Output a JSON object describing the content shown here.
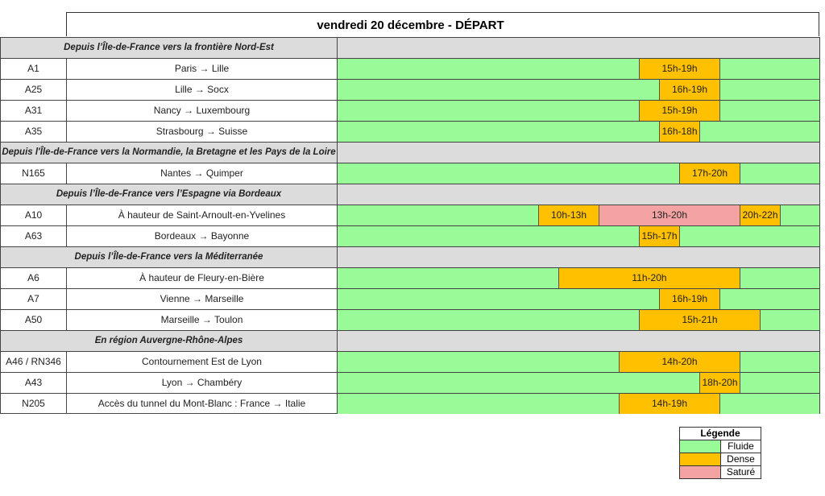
{
  "title": "vendredi 20 décembre  - DÉPART",
  "colors": {
    "fluide": "#98fb98",
    "dense": "#ffc000",
    "sature": "#f4a3a3"
  },
  "sections": [
    {
      "label": "Depuis l’Île-de-France vers la frontière Nord-Est",
      "rows": [
        {
          "road": "A1",
          "desc": "Paris → Lille",
          "periods": [
            {
              "label": "15h-19h",
              "start": 15,
              "end": 19,
              "level": "dense"
            }
          ]
        },
        {
          "road": "A25",
          "desc": "Lille → Socx",
          "periods": [
            {
              "label": "16h-19h",
              "start": 16,
              "end": 19,
              "level": "dense"
            }
          ]
        },
        {
          "road": "A31",
          "desc": "Nancy → Luxembourg",
          "periods": [
            {
              "label": "15h-19h",
              "start": 15,
              "end": 19,
              "level": "dense"
            }
          ]
        },
        {
          "road": "A35",
          "desc": "Strasbourg → Suisse",
          "periods": [
            {
              "label": "16h-18h",
              "start": 16,
              "end": 18,
              "level": "dense"
            }
          ]
        }
      ]
    },
    {
      "label": "Depuis l'Île-de-France vers la Normandie, la Bretagne et les Pays de la Loire",
      "rows": [
        {
          "road": "N165",
          "desc": "Nantes → Quimper",
          "periods": [
            {
              "label": "17h-20h",
              "start": 17,
              "end": 20,
              "level": "dense"
            }
          ]
        }
      ]
    },
    {
      "label": "Depuis l’Île-de-France vers l’Espagne via Bordeaux",
      "rows": [
        {
          "road": "A10",
          "desc": "À hauteur de Saint-Arnoult-en-Yvelines",
          "periods": [
            {
              "label": "10h-13h",
              "start": 10,
              "end": 13,
              "level": "dense"
            },
            {
              "label": "13h-20h",
              "start": 13,
              "end": 20,
              "level": "sature"
            },
            {
              "label": "20h-22h",
              "start": 20,
              "end": 22,
              "level": "dense"
            }
          ]
        },
        {
          "road": "A63",
          "desc": "Bordeaux → Bayonne",
          "periods": [
            {
              "label": "15h-17h",
              "start": 15,
              "end": 17,
              "level": "dense"
            }
          ]
        }
      ]
    },
    {
      "label": "Depuis l’Île-de-France vers la Méditerranée",
      "rows": [
        {
          "road": "A6",
          "desc": "À hauteur de Fleury-en-Bière",
          "periods": [
            {
              "label": "11h-20h",
              "start": 11,
              "end": 20,
              "level": "dense"
            }
          ]
        },
        {
          "road": "A7",
          "desc": "Vienne → Marseille",
          "periods": [
            {
              "label": "16h-19h",
              "start": 16,
              "end": 19,
              "level": "dense"
            }
          ]
        },
        {
          "road": "A50",
          "desc": "Marseille → Toulon",
          "periods": [
            {
              "label": "15h-21h",
              "start": 15,
              "end": 21,
              "level": "dense"
            }
          ]
        }
      ]
    },
    {
      "label": "En région Auvergne-Rhône-Alpes",
      "rows": [
        {
          "road": "A46 / RN346",
          "desc": "Contournement Est de Lyon",
          "periods": [
            {
              "label": "14h-20h",
              "start": 14,
              "end": 20,
              "level": "dense"
            }
          ]
        },
        {
          "road": "A43",
          "desc": "Lyon → Chambéry",
          "periods": [
            {
              "label": "18h-20h",
              "start": 18,
              "end": 20,
              "level": "dense"
            }
          ]
        },
        {
          "road": "N205",
          "desc": "Accès du tunnel du Mont-Blanc : France → Italie",
          "periods": [
            {
              "label": "14h-19h",
              "start": 14,
              "end": 19,
              "level": "dense"
            }
          ]
        }
      ]
    }
  ],
  "legend": {
    "title": "Légende",
    "items": [
      {
        "key": "fluide",
        "label": "Fluide"
      },
      {
        "key": "dense",
        "label": "Dense"
      },
      {
        "key": "sature",
        "label": "Saturé"
      }
    ]
  }
}
